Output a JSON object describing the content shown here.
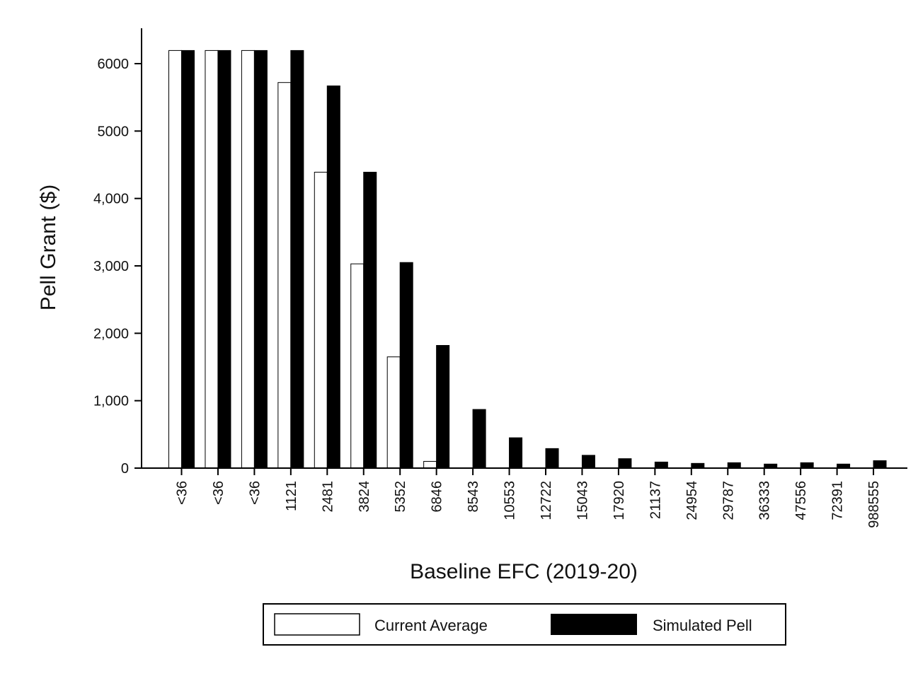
{
  "chart_data": {
    "type": "bar",
    "xlabel": "Baseline EFC (2019-20)",
    "ylabel": "Pell Grant ($)",
    "ylim": [
      0,
      6500
    ],
    "yticks": [
      {
        "value": 0,
        "label": "0"
      },
      {
        "value": 1000,
        "label": "1,000"
      },
      {
        "value": 2000,
        "label": "2,000"
      },
      {
        "value": 3000,
        "label": "3,000"
      },
      {
        "value": 4000,
        "label": "4,000"
      },
      {
        "value": 5000,
        "label": "5000"
      },
      {
        "value": 6000,
        "label": "6000"
      }
    ],
    "categories": [
      "<36",
      "<36",
      "<36",
      "1121",
      "2481",
      "3824",
      "5352",
      "6846",
      "8543",
      "10553",
      "12722",
      "15043",
      "17920",
      "21137",
      "24954",
      "29787",
      "36333",
      "47556",
      "72391",
      "988555"
    ],
    "series": [
      {
        "name": "Current Average",
        "color": "#ffffff",
        "values": [
          6195,
          6195,
          6195,
          5720,
          4390,
          3030,
          1650,
          100,
          0,
          0,
          0,
          0,
          0,
          0,
          0,
          0,
          0,
          0,
          0,
          0
        ]
      },
      {
        "name": "Simulated Pell",
        "color": "#000000",
        "values": [
          6195,
          6195,
          6195,
          6195,
          5670,
          4390,
          3050,
          1820,
          870,
          450,
          290,
          190,
          140,
          90,
          70,
          80,
          60,
          80,
          60,
          110
        ]
      }
    ],
    "grid": false,
    "legend": "bottom"
  }
}
